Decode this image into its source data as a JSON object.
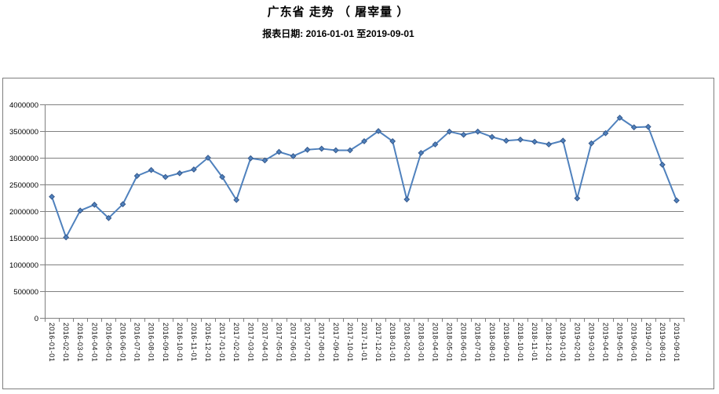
{
  "page": {
    "title": "广东省 走势 （ 屠宰量 ）",
    "report_date": "报表日期: 2016-01-01 至2019-09-01"
  },
  "chart_data": {
    "type": "line",
    "title": "广东省 走势 （ 屠宰量 ）",
    "subtitle": "报表日期: 2016-01-01 至2019-09-01",
    "legend_position": "none",
    "grid": true,
    "marker": "diamond",
    "ylim": [
      0,
      4000000
    ],
    "ytick_step": 500000,
    "ytick_labels": [
      "0",
      "500000",
      "1000000",
      "1500000",
      "2000000",
      "2500000",
      "3000000",
      "3500000",
      "4000000"
    ],
    "categories": [
      "2016-01-01",
      "2016-02-01",
      "2016-03-01",
      "2016-04-01",
      "2016-05-01",
      "2016-06-01",
      "2016-07-01",
      "2016-08-01",
      "2016-09-01",
      "2016-10-01",
      "2016-11-01",
      "2016-12-01",
      "2017-01-01",
      "2017-02-01",
      "2017-03-01",
      "2017-04-01",
      "2017-05-01",
      "2017-06-01",
      "2017-07-01",
      "2017-08-01",
      "2017-09-01",
      "2017-10-01",
      "2017-11-01",
      "2017-12-01",
      "2018-01-01",
      "2018-02-01",
      "2018-03-01",
      "2018-04-01",
      "2018-05-01",
      "2018-06-01",
      "2018-07-01",
      "2018-08-01",
      "2018-09-01",
      "2018-10-01",
      "2018-11-01",
      "2018-12-01",
      "2019-01-01",
      "2019-02-01",
      "2019-03-01",
      "2019-04-01",
      "2019-05-01",
      "2019-06-01",
      "2019-07-01",
      "2019-08-01",
      "2019-09-01"
    ],
    "series": [
      {
        "name": "屠宰量",
        "values": [
          2270000,
          1510000,
          2010000,
          2120000,
          1870000,
          2130000,
          2660000,
          2770000,
          2640000,
          2710000,
          2780000,
          3000000,
          2640000,
          2210000,
          2990000,
          2950000,
          3110000,
          3030000,
          3150000,
          3170000,
          3140000,
          3140000,
          3310000,
          3500000,
          3310000,
          2220000,
          3090000,
          3250000,
          3490000,
          3430000,
          3490000,
          3390000,
          3320000,
          3340000,
          3300000,
          3250000,
          3320000,
          2240000,
          3270000,
          3460000,
          3750000,
          3570000,
          3580000,
          2870000,
          2200000
        ]
      }
    ],
    "colors": {
      "line": "#4F81BD",
      "marker_fill": "#4F81BD",
      "marker_edge": "#36598C",
      "grid": "#808080",
      "axis": "#808080",
      "border": "#7F7F7F",
      "text": "#000000"
    }
  }
}
